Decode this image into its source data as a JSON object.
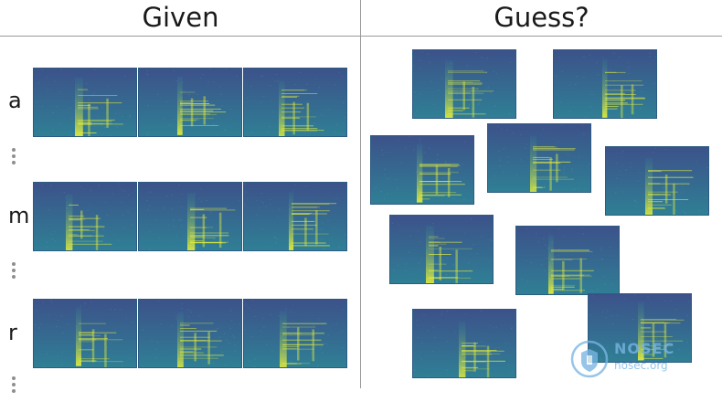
{
  "headers": {
    "given": "Given",
    "guess": "Guess?"
  },
  "rows": [
    {
      "label": "a"
    },
    {
      "label": "m"
    },
    {
      "label": "r"
    }
  ],
  "colors": {
    "spectrogram_background": "#2f7f95",
    "spectrogram_dark": "#3c528a",
    "spectrogram_bright": "#e0ea3c",
    "divider": "#9a9a9a",
    "logo": "#79b6e3"
  },
  "logo": {
    "name": "NOSEC",
    "site": "nosec.org"
  }
}
